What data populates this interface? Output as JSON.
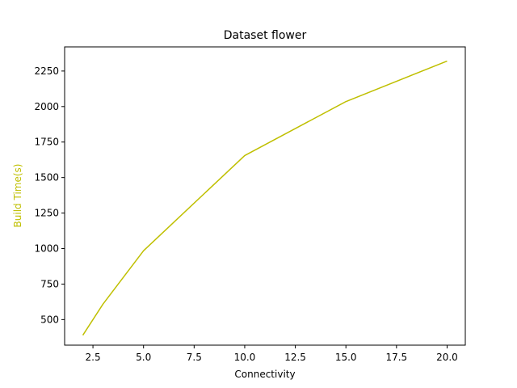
{
  "chart_data": {
    "type": "line",
    "title": "Dataset flower",
    "xlabel": "Connectivity",
    "ylabel": "Build Time(s)",
    "xlim": [
      1.1,
      20.9
    ],
    "ylim": [
      320,
      2420
    ],
    "x_ticks": [
      2.5,
      5.0,
      7.5,
      10.0,
      12.5,
      15.0,
      17.5,
      20.0
    ],
    "x_tick_labels": [
      "2.5",
      "5.0",
      "7.5",
      "10.0",
      "12.5",
      "15.0",
      "17.5",
      "20.0"
    ],
    "y_ticks": [
      500,
      750,
      1000,
      1250,
      1500,
      1750,
      2000,
      2250
    ],
    "y_tick_labels": [
      "500",
      "750",
      "1000",
      "1250",
      "1500",
      "1750",
      "2000",
      "2250"
    ],
    "grid": false,
    "series": [
      {
        "color": "#bfbf00",
        "x": [
          2,
          3,
          5,
          10,
          15,
          20
        ],
        "y": [
          390,
          610,
          985,
          1655,
          2035,
          2320
        ]
      }
    ],
    "ylabel_color": "#bfbf00"
  }
}
